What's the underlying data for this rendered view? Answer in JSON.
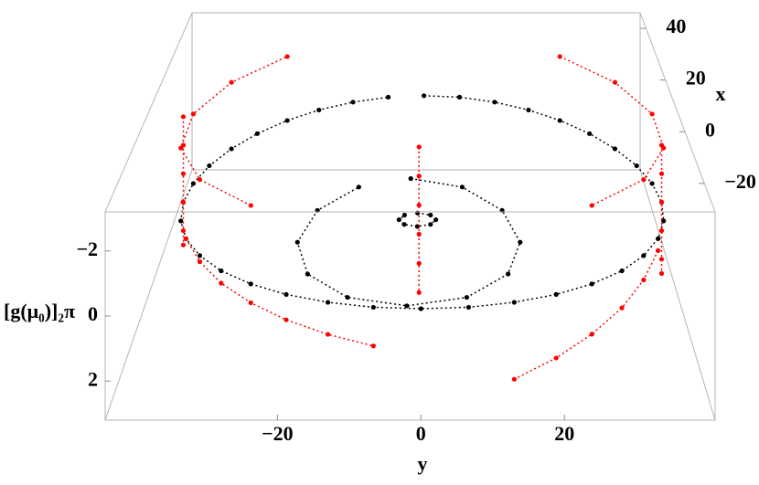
{
  "chart_data": {
    "type": "scatter3d",
    "xlabel": "x",
    "ylabel": "y",
    "zlabel": "[g(μ₀)]₂π",
    "xlim": [
      -31,
      46
    ],
    "ylim": [
      -44,
      41
    ],
    "zlim": [
      -3.2,
      3.2
    ],
    "xticks": [
      {
        "value": -20,
        "label": "−20"
      },
      0,
      20,
      40
    ],
    "yticks": [
      {
        "value": -20,
        "label": "−20"
      },
      0,
      20
    ],
    "zticks": [
      {
        "value": -2,
        "label": "−2"
      },
      0,
      2
    ],
    "series": [
      {
        "color": "#000000",
        "x": [
          44.5,
          44,
          42.3,
          39.6,
          36,
          31.5,
          26.3,
          20.5,
          14.4,
          8,
          1.6,
          -4.5,
          -10.3,
          -15.5,
          -20,
          -23.6,
          -26.3,
          -28,
          -28.5,
          -28,
          -26.3,
          -23.6,
          -20,
          -15.5,
          -10.3,
          -4.5,
          1.6,
          8,
          14.4,
          20.5,
          26.3,
          31.5,
          36,
          39.6,
          42.3,
          44
        ],
        "y": [
          0,
          6.7,
          13.2,
          19.3,
          24.7,
          29.5,
          33.3,
          36.2,
          37.9,
          38.5,
          37.9,
          36.2,
          33.3,
          29.5,
          24.7,
          19.3,
          13.2,
          6.7,
          0,
          -6.7,
          -13.2,
          -19.3,
          -24.7,
          -29.5,
          -33.3,
          -36.2,
          -37.9,
          -38.5,
          -37.9,
          -36.2,
          -33.3,
          -29.5,
          -24.7,
          -19.3,
          -13.2,
          -6.7
        ],
        "z": [
          0,
          0,
          0,
          0,
          0,
          0,
          0,
          0,
          0,
          0,
          0,
          0,
          0,
          0,
          0,
          0,
          0,
          0,
          0,
          0,
          0,
          0,
          0,
          0,
          0,
          0,
          0,
          0,
          0,
          0,
          0,
          0,
          0,
          0,
          0,
          0
        ]
      },
      {
        "color": "#000000",
        "x": [
          16.1,
          13.2,
          5.2,
          -5.7,
          -16.6,
          -24.6,
          -27.5,
          -24.6,
          -16.6,
          -5.7,
          5.2,
          13.2
        ],
        "y": [
          -2,
          6.5,
          12.7,
          15,
          12.7,
          6.5,
          -2,
          -10.5,
          -16.7,
          -19,
          -16.7,
          -10.5
        ],
        "z": [
          0,
          0,
          0,
          0,
          0,
          0,
          0,
          0,
          0,
          0,
          0,
          0
        ]
      },
      {
        "color": "#000000",
        "x": [
          4.3,
          3.6,
          2,
          0.4,
          -0.3,
          0.4,
          2,
          3.6
        ],
        "y": [
          -0.75,
          1.3,
          2.15,
          1.3,
          -0.75,
          -2.8,
          -3.65,
          -2.8
        ],
        "z": [
          0,
          0,
          0,
          0,
          0,
          0,
          0,
          0
        ]
      },
      {
        "color": "#ff0000",
        "x": [
          8,
          8,
          8,
          8,
          8,
          8
        ],
        "y": [
          -38.5,
          -38.5,
          -38.5,
          -38.5,
          -38.5,
          -38.5
        ],
        "z": [
          -3,
          -2,
          -1,
          0,
          1,
          1.5
        ]
      },
      {
        "color": "#ff0000",
        "x": [
          8,
          8,
          8,
          8,
          8,
          8
        ],
        "y": [
          38.5,
          38.5,
          38.5,
          38.5,
          38.5,
          38.5
        ],
        "z": [
          -2,
          -1,
          0,
          1,
          2,
          2.5
        ]
      },
      {
        "color": "#ff0000",
        "x": [
          -4.5,
          -10.3,
          -15.5,
          -20,
          -23.6,
          -26.3,
          -28
        ],
        "y": [
          -36.2,
          -33.3,
          -29.5,
          -24.7,
          -19.3,
          -13.2,
          -6.7
        ],
        "z": [
          0,
          0.2,
          0.4,
          0.6,
          0.8,
          1,
          1.2
        ]
      },
      {
        "color": "#ff0000",
        "x": [
          -4.5,
          -10.3,
          -15.5,
          -20,
          -23.6,
          -26.3
        ],
        "y": [
          36.2,
          33.3,
          29.5,
          24.7,
          19.3,
          13.2
        ],
        "z": [
          0.4,
          0.8,
          1.2,
          1.6,
          2,
          2.4
        ]
      },
      {
        "color": "#ff0000",
        "x": [
          2,
          2,
          2,
          2,
          2,
          2
        ],
        "y": [
          -0.5,
          -0.5,
          -0.5,
          -0.5,
          -0.5,
          -0.5
        ],
        "z": [
          -2.5,
          -1.5,
          -0.5,
          0.5,
          1.5,
          2.5
        ]
      },
      {
        "color": "#ff0000",
        "x": [
          36,
          26.3,
          14.4,
          1.6,
          -10.3,
          -20,
          null,
          -20,
          -10.3,
          1.6,
          14.4,
          26.3,
          36
        ],
        "y": [
          24.7,
          33.3,
          37.9,
          37.9,
          33.3,
          24.7,
          null,
          -24.7,
          -33.3,
          -37.9,
          -37.9,
          -33.3,
          -24.7
        ],
        "z": [
          -2.5,
          -2.5,
          -2.5,
          -2.5,
          -2.5,
          -2.5,
          null,
          -2.5,
          -2.5,
          -2.5,
          -2.5,
          -2.5,
          -2.5
        ]
      }
    ]
  }
}
